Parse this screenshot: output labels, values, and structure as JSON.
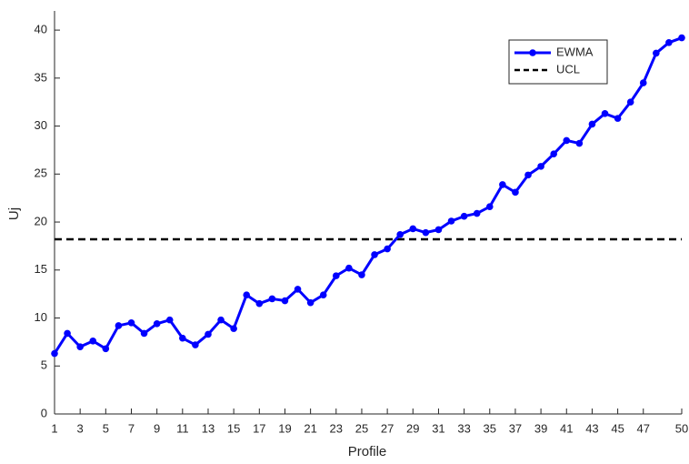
{
  "chart_data": {
    "type": "line",
    "x_label": "Profile",
    "y_label": "Uj",
    "x": [
      1,
      2,
      3,
      4,
      5,
      6,
      7,
      8,
      9,
      10,
      11,
      12,
      13,
      14,
      15,
      16,
      17,
      18,
      19,
      20,
      21,
      22,
      23,
      24,
      25,
      26,
      27,
      28,
      29,
      30,
      31,
      32,
      33,
      34,
      35,
      36,
      37,
      38,
      39,
      40,
      41,
      42,
      43,
      44,
      45,
      46,
      47,
      48,
      49,
      50
    ],
    "series": [
      {
        "name": "EWMA",
        "color": "#0000ff",
        "values": [
          6.3,
          8.4,
          7.0,
          7.6,
          6.8,
          9.2,
          9.5,
          8.4,
          9.4,
          9.8,
          7.9,
          7.2,
          8.3,
          9.8,
          8.9,
          12.4,
          11.5,
          12.0,
          11.8,
          13.0,
          11.6,
          12.4,
          14.4,
          15.2,
          14.5,
          16.6,
          17.2,
          18.7,
          19.3,
          18.9,
          19.2,
          20.1,
          20.6,
          20.9,
          21.6,
          23.9,
          23.1,
          24.9,
          25.8,
          27.1,
          28.5,
          28.2,
          30.2,
          31.3,
          30.8,
          32.5,
          34.5,
          37.6,
          38.7,
          39.2
        ]
      }
    ],
    "reference_lines": [
      {
        "name": "UCL",
        "value": 18.2,
        "color": "#000000"
      }
    ],
    "xlim": [
      1,
      50
    ],
    "xticks": [
      1,
      3,
      5,
      7,
      9,
      11,
      13,
      15,
      17,
      19,
      21,
      23,
      25,
      27,
      29,
      31,
      33,
      35,
      37,
      39,
      41,
      43,
      45,
      47,
      50
    ],
    "ylim": [
      0,
      42
    ],
    "yticks": [
      0,
      5,
      10,
      15,
      20,
      25,
      30,
      35,
      40
    ],
    "legend": "upper right"
  }
}
